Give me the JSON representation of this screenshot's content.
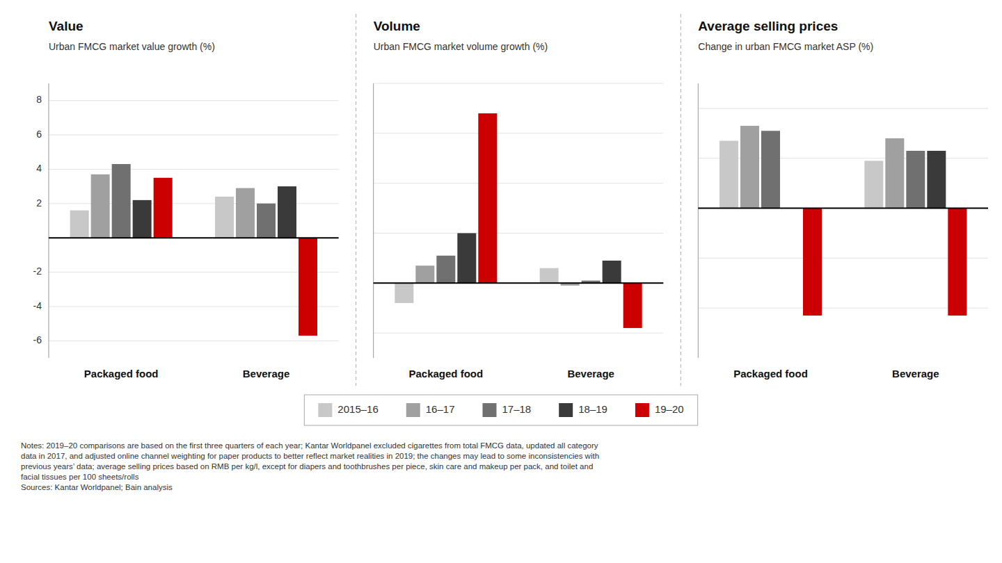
{
  "chart_data": [
    {
      "type": "bar",
      "title": "Value",
      "subtitle": "Urban FMCG market value growth (%)",
      "categories": [
        "Packaged food",
        "Beverage"
      ],
      "series": [
        {
          "name": "2015–16",
          "color": "#c8c8c8",
          "values": [
            1.6,
            2.4
          ]
        },
        {
          "name": "16–17",
          "color": "#a0a0a0",
          "values": [
            3.7,
            2.9
          ]
        },
        {
          "name": "17–18",
          "color": "#707070",
          "values": [
            4.3,
            2.0
          ]
        },
        {
          "name": "18–19",
          "color": "#3a3a3a",
          "values": [
            2.2,
            3.0
          ]
        },
        {
          "name": "19–20",
          "color": "#cc0000",
          "values": [
            3.5,
            -5.7
          ]
        }
      ],
      "ylim": [
        -7,
        9
      ],
      "yticks": [
        -6,
        -4,
        -2,
        {
          "value": 0,
          "label": null
        },
        2,
        4,
        6,
        8
      ],
      "grid": true,
      "legend": "bottom"
    },
    {
      "type": "bar",
      "title": "Volume",
      "subtitle": "Urban FMCG market volume growth (%)",
      "categories": [
        "Packaged food",
        "Beverage"
      ],
      "series": [
        {
          "name": "2015–16",
          "color": "#c8c8c8",
          "values": [
            -0.8,
            0.6
          ]
        },
        {
          "name": "16–17",
          "color": "#a0a0a0",
          "values": [
            0.7,
            -0.1
          ]
        },
        {
          "name": "17–18",
          "color": "#707070",
          "values": [
            1.1,
            0.1
          ]
        },
        {
          "name": "18–19",
          "color": "#3a3a3a",
          "values": [
            2.0,
            0.9
          ]
        },
        {
          "name": "19–20",
          "color": "#cc0000",
          "values": [
            6.8,
            -1.8
          ]
        }
      ],
      "ylim": [
        -3,
        8
      ],
      "yticks": [
        -2,
        0,
        2,
        4,
        6,
        8
      ],
      "grid": true,
      "tick_labels": "x"
    },
    {
      "type": "bar",
      "title": "Average selling prices",
      "subtitle": "Change in urban FMCG market ASP (%)",
      "categories": [
        "Packaged food",
        "Beverage"
      ],
      "series": [
        {
          "name": "2015–16",
          "color": "#c8c8c8",
          "values": [
            2.7,
            1.9
          ]
        },
        {
          "name": "16–17",
          "color": "#a0a0a0",
          "values": [
            3.3,
            2.8
          ]
        },
        {
          "name": "17–18",
          "color": "#707070",
          "values": [
            3.1,
            2.3
          ]
        },
        {
          "name": "18–19",
          "color": "#3a3a3a",
          "values": [
            0.0,
            2.3
          ]
        },
        {
          "name": "19–20",
          "color": "#cc0000",
          "values": [
            -4.3,
            -4.3
          ]
        }
      ],
      "ylim": [
        -6,
        5
      ],
      "yticks": [
        -4,
        -2,
        0,
        2,
        4
      ],
      "grid": true,
      "tick_labels": "x"
    }
  ],
  "annotations": [
    "Notes: 2019–20 comparisons are based on the first three quarters of each year; Kantar Worldpanel excluded cigarettes from total FMCG data, updated all category\ndata in 2017, and adjusted online channel weighting for paper products to better reflect market realities in 2019; the changes may lead to some inconsistencies with\nprevious years’ data; average selling prices based on RMB per kg/l, except for diapers and toothbrushes per piece, skin care and makeup per pack, and toilet and\nfacial tissues per 100 sheets/rolls",
    "Sources: Kantar Worldpanel; Bain analysis"
  ]
}
